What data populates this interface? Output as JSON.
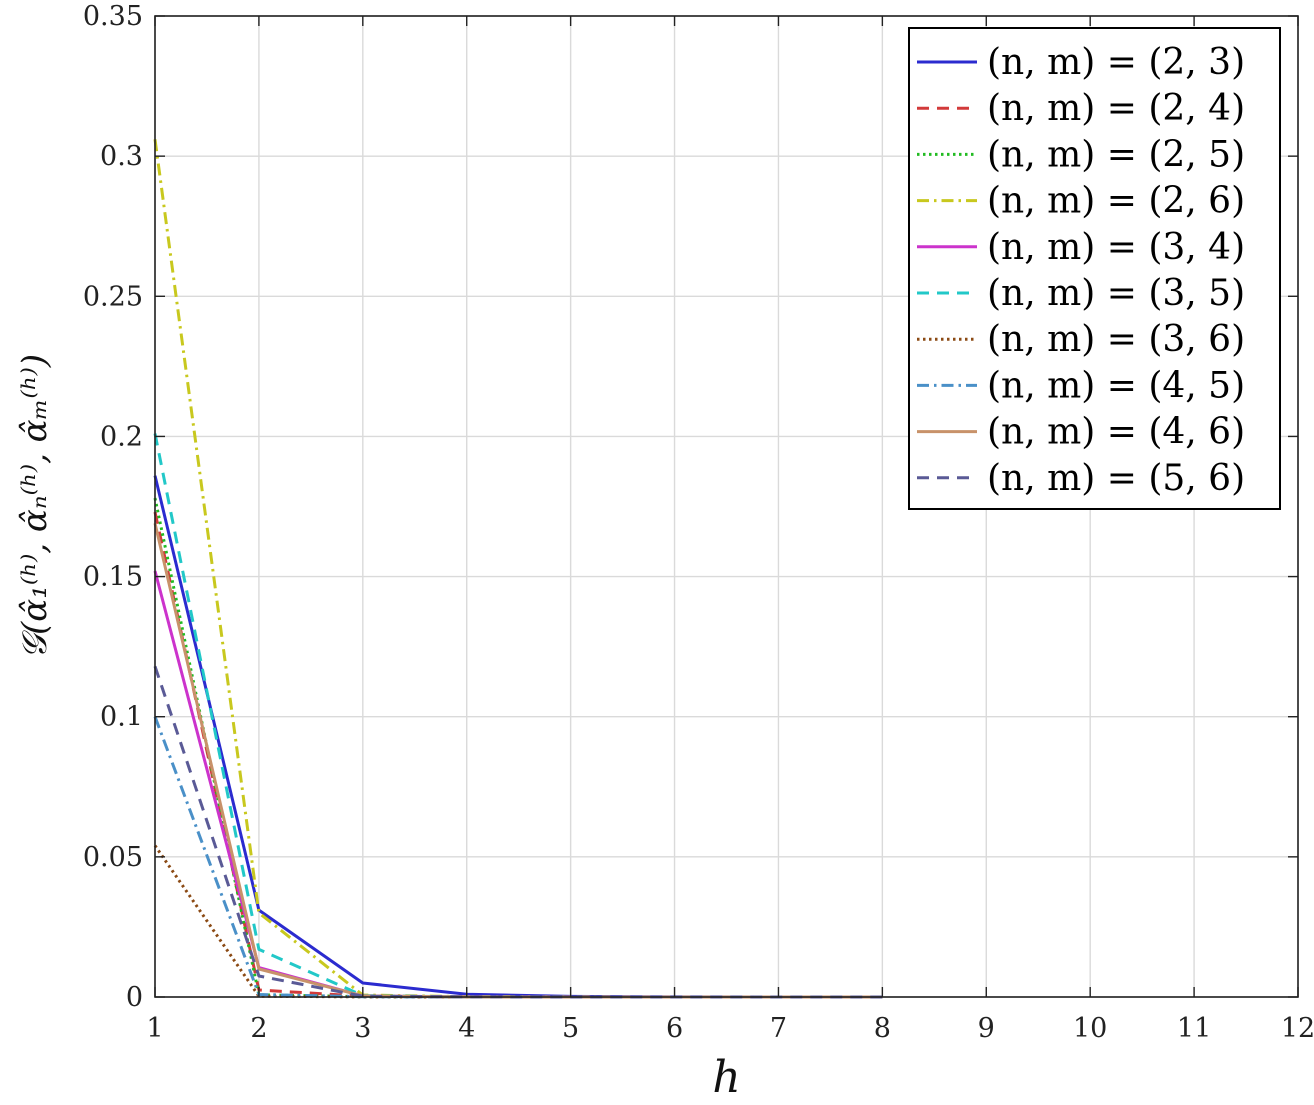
{
  "chart_data": {
    "type": "line",
    "xlabel": "h",
    "ylabel": "𝒢(α̂₁⁽ʰ⁾, α̂ₙ⁽ʰ⁾, α̂ₘ⁽ʰ⁾)",
    "xlim": [
      1,
      12
    ],
    "ylim": [
      0,
      0.35
    ],
    "x_ticks": [
      "1",
      "2",
      "3",
      "4",
      "5",
      "6",
      "7",
      "8",
      "9",
      "10",
      "11",
      "12"
    ],
    "y_ticks": [
      "0",
      "0.05",
      "0.1",
      "0.15",
      "0.2",
      "0.25",
      "0.3",
      "0.35"
    ],
    "grid": true,
    "legend_position": "top-right",
    "x": [
      1,
      2,
      3,
      4,
      5,
      6,
      7,
      8
    ],
    "series": [
      {
        "name": "(n, m) = (2, 3)",
        "color": "#2b2bcf",
        "dash": "solid",
        "values": [
          0.186,
          0.031,
          0.005,
          0.001,
          0.0002,
          5e-05,
          1e-05,
          0.0
        ]
      },
      {
        "name": "(n, m) = (2, 4)",
        "color": "#d23a3a",
        "dash": "dashed",
        "values": [
          0.173,
          0.0025,
          0.0003,
          5e-05,
          1e-05,
          0.0,
          0.0,
          0.0
        ]
      },
      {
        "name": "(n, m) = (2, 5)",
        "color": "#22bb22",
        "dash": "dotted",
        "values": [
          0.178,
          0.0008,
          0.0001,
          0.0,
          0.0,
          0.0,
          0.0,
          0.0
        ]
      },
      {
        "name": "(n, m) = (2, 6)",
        "color": "#c8c81e",
        "dash": "dashdot",
        "values": [
          0.306,
          0.03,
          0.0007,
          0.0001,
          2e-05,
          0.0,
          0.0,
          0.0
        ]
      },
      {
        "name": "(n, m) = (3, 4)",
        "color": "#cc33cc",
        "dash": "solid",
        "values": [
          0.152,
          0.0105,
          0.0004,
          5e-05,
          0.0,
          0.0,
          0.0,
          0.0
        ]
      },
      {
        "name": "(n, m) = (3, 5)",
        "color": "#22c8c8",
        "dash": "dashed",
        "values": [
          0.201,
          0.017,
          0.0005,
          5e-05,
          0.0,
          0.0,
          0.0,
          0.0
        ]
      },
      {
        "name": "(n, m) = (3, 6)",
        "color": "#8b4a14",
        "dash": "dotted",
        "values": [
          0.054,
          0.0003,
          2e-05,
          0.0,
          0.0,
          0.0,
          0.0,
          0.0
        ]
      },
      {
        "name": "(n, m) = (4, 5)",
        "color": "#4a90c8",
        "dash": "dashdot",
        "values": [
          0.1,
          0.0009,
          0.0001,
          0.0,
          0.0,
          0.0,
          0.0,
          0.0
        ]
      },
      {
        "name": "(n, m) = (4, 6)",
        "color": "#c8926a",
        "dash": "solid",
        "values": [
          0.169,
          0.01,
          0.0004,
          5e-05,
          0.0,
          0.0,
          0.0,
          0.0
        ]
      },
      {
        "name": "(n, m) = (5, 6)",
        "color": "#5a5a96",
        "dash": "dashed",
        "values": [
          0.118,
          0.0075,
          0.0003,
          3e-05,
          0.0,
          0.0,
          0.0,
          0.0
        ]
      }
    ]
  }
}
